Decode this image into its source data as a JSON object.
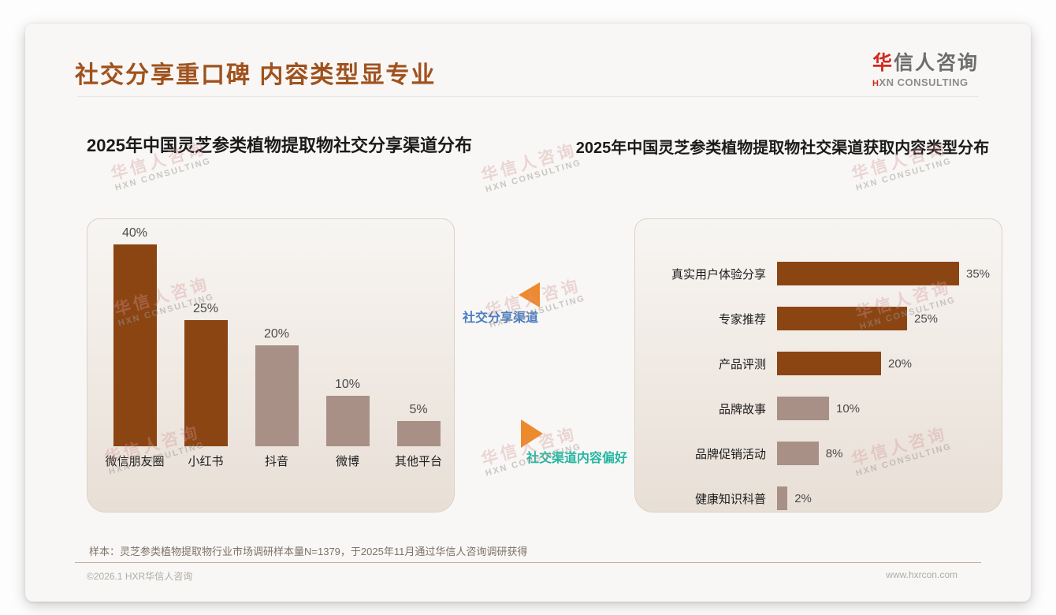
{
  "header": {
    "title": "社交分享重口碑 内容类型显专业",
    "logo": {
      "brand_red": "华",
      "brand_rest": "信人咨询",
      "subtitle_prefix": "H",
      "subtitle_rest": "XN CONSULTING"
    }
  },
  "watermark": {
    "line1": "华信人咨询",
    "line2": "HXN CONSULTING"
  },
  "chart_data": [
    {
      "type": "bar",
      "orientation": "vertical",
      "title": "2025年中国灵芝参类植物提取物社交分享渠道分布",
      "categories": [
        "微信朋友圈",
        "小红书",
        "抖音",
        "微博",
        "其他平台"
      ],
      "values": [
        40,
        25,
        20,
        10,
        5
      ],
      "value_labels": [
        "40%",
        "25%",
        "20%",
        "10%",
        "5%"
      ],
      "bar_colors": [
        "#8b4513",
        "#8b4513",
        "#a89087",
        "#a89087",
        "#a89087"
      ],
      "ylim": [
        0,
        45
      ],
      "grid": false,
      "legend": "none"
    },
    {
      "type": "bar",
      "orientation": "horizontal",
      "title": "2025年中国灵芝参类植物提取物社交渠道获取内容类型分布",
      "categories": [
        "真实用户体验分享",
        "专家推荐",
        "产品评测",
        "品牌故事",
        "品牌促销活动",
        "健康知识科普"
      ],
      "values": [
        35,
        25,
        20,
        10,
        8,
        2
      ],
      "value_labels": [
        "35%",
        "25%",
        "20%",
        "10%",
        "8%",
        "2%"
      ],
      "bar_colors": [
        "#8b4513",
        "#8b4513",
        "#8b4513",
        "#a89087",
        "#a89087",
        "#a89087"
      ],
      "xlim": [
        0,
        40
      ],
      "grid": false,
      "legend": "none"
    }
  ],
  "annotations": {
    "top": {
      "label": "社交分享渠道",
      "text_color": "#4a7cc0",
      "arrow": "left",
      "arrow_color": "#ee8a2e"
    },
    "bottom": {
      "label": "社交渠道内容偏好",
      "text_color": "#27b6a2",
      "arrow": "right",
      "arrow_color": "#ee8a2e"
    }
  },
  "footer": {
    "note": "样本：灵芝参类植物提取物行业市场调研样本量N=1379，于2025年11月通过华信人咨询调研获得",
    "copyright": "©2026.1 HXR华信人咨询",
    "website": "www.hxrcon.com"
  },
  "colors": {
    "title_brown": "#a0521e",
    "bar_dark_brown": "#8b4513",
    "bar_mauve": "#a89087",
    "accent_orange": "#ee8a2e",
    "accent_blue": "#4a7cc0",
    "accent_teal": "#27b6a2"
  }
}
